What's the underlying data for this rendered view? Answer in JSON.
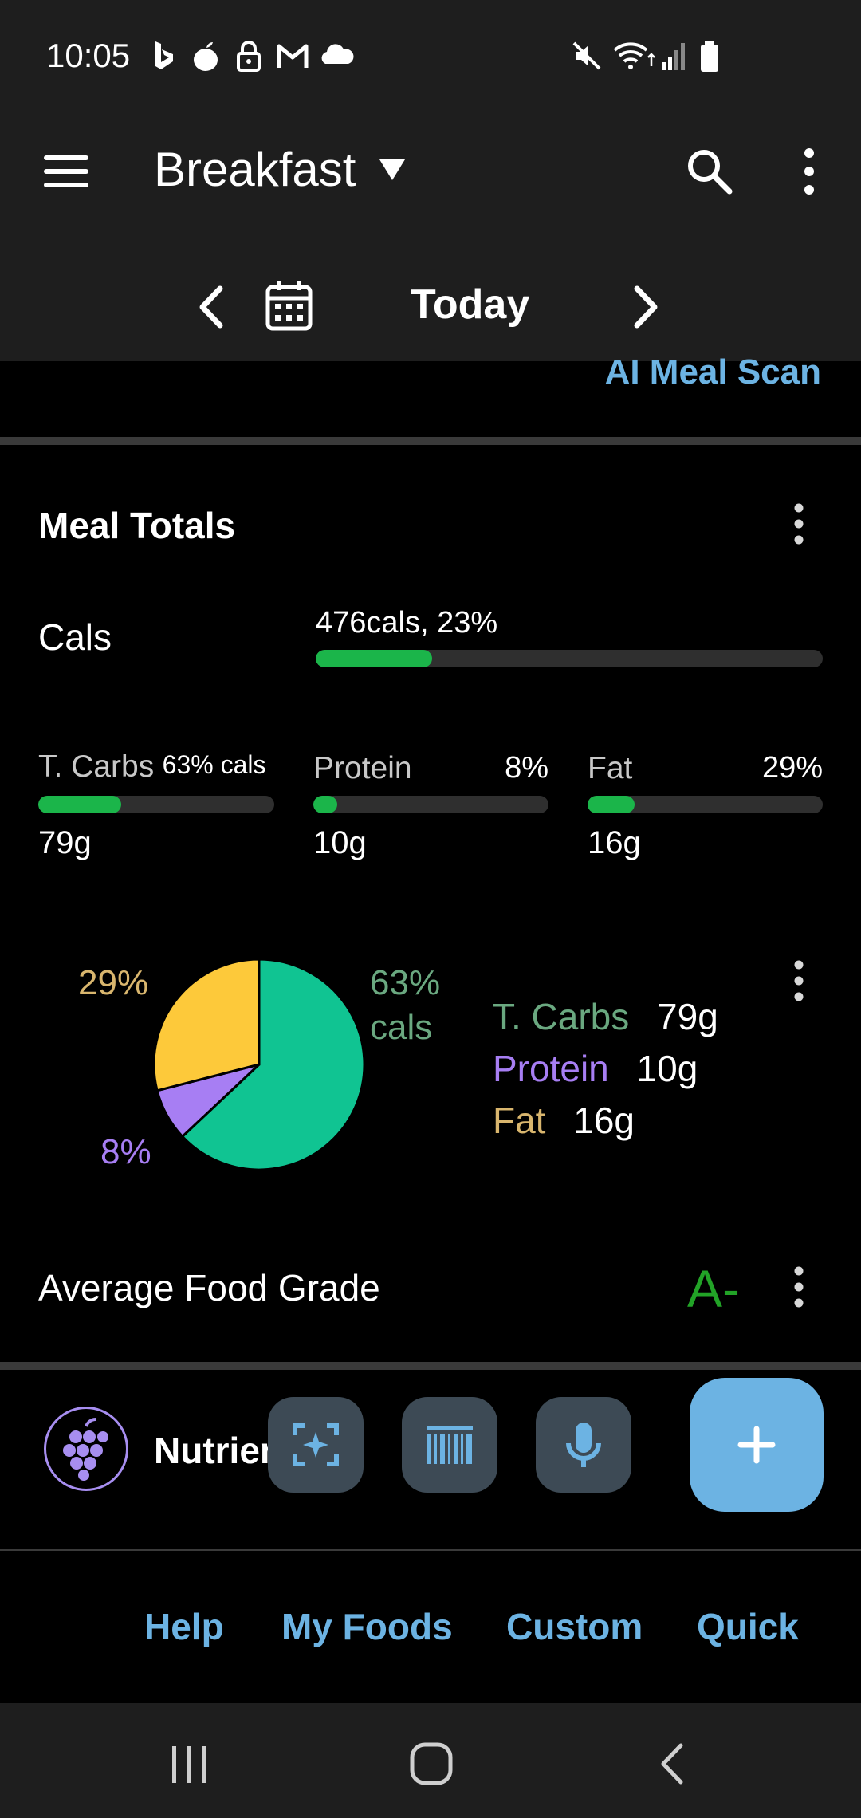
{
  "status_bar": {
    "time": "10:05",
    "left_icons": [
      "bing-icon",
      "apple-icon",
      "lock-icon",
      "gmail-icon",
      "cloud-icon"
    ],
    "right_icons": [
      "mute-icon",
      "wifi-icon",
      "signal-icon",
      "battery-icon"
    ]
  },
  "app_bar": {
    "title": "Breakfast",
    "date_label": "Today"
  },
  "ai_scan": {
    "label": "AI Meal Scan"
  },
  "meal_totals": {
    "title": "Meal Totals",
    "cals": {
      "label": "Cals",
      "value": "476cals, 23%",
      "fraction": 0.23
    },
    "macros": [
      {
        "label": "T. Carbs",
        "pct": "63% cals",
        "grams": "79g",
        "fraction": 0.35
      },
      {
        "label": "Protein",
        "pct": "8%",
        "grams": "10g",
        "fraction": 0.1
      },
      {
        "label": "Fat",
        "pct": "29%",
        "grams": "16g",
        "fraction": 0.2
      }
    ]
  },
  "chart_data": {
    "type": "pie",
    "slices": [
      {
        "name": "T. Carbs",
        "value": 63,
        "label": "63%\ncals",
        "color": "#10c492"
      },
      {
        "name": "Protein",
        "value": 8,
        "label": "8%",
        "color": "#a77ef3"
      },
      {
        "name": "Fat",
        "value": 29,
        "label": "29%",
        "color": "#fdc93a"
      }
    ]
  },
  "legend": [
    {
      "name": "T. Carbs",
      "value": "79g",
      "color": "#6aa880"
    },
    {
      "name": "Protein",
      "value": "10g",
      "color": "#a77ef3"
    },
    {
      "name": "Fat",
      "value": "16g",
      "color": "#d9b66e"
    }
  ],
  "pie_labels": {
    "carbs_pct": "63%",
    "carbs_unit": "cals",
    "protein_pct": "8%",
    "fat_pct": "29%"
  },
  "grade": {
    "label": "Average Food Grade",
    "value": "A-",
    "color": "#22a327"
  },
  "action_strip": {
    "brand": "Nutrien",
    "buttons": [
      "ai-scan-icon",
      "barcode-icon",
      "microphone-icon"
    ],
    "add_symbol": "+"
  },
  "footer": {
    "links": [
      "Help",
      "My Foods",
      "Custom",
      "Quick"
    ]
  }
}
